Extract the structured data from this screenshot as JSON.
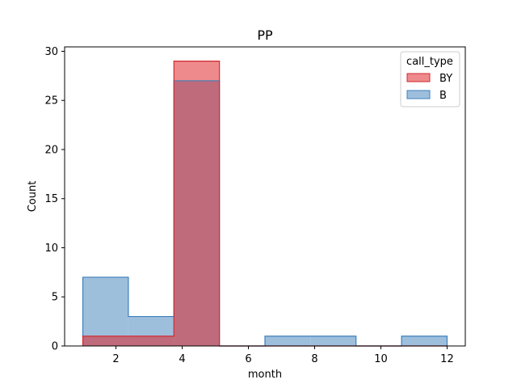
{
  "chart_data": {
    "type": "histogram",
    "title": "PP",
    "xlabel": "month",
    "ylabel": "Count",
    "xlim": [
      0.45,
      12.55
    ],
    "ylim": [
      0,
      30.45
    ],
    "xticks": [
      2,
      4,
      6,
      8,
      10,
      12
    ],
    "yticks": [
      0,
      5,
      10,
      15,
      20,
      25,
      30
    ],
    "bin_edges": [
      1.0,
      2.375,
      3.75,
      5.125,
      6.5,
      7.875,
      9.25,
      10.625,
      12.0
    ],
    "legend": {
      "title": "call_type",
      "placement": "top-right"
    },
    "series": [
      {
        "name": "B",
        "fill": "#9ebfdc",
        "stroke": "#3c7fbc",
        "values": [
          7,
          3,
          27,
          0,
          1,
          1,
          0,
          1
        ]
      },
      {
        "name": "BY",
        "fill": "#ee8a8c",
        "stroke": "#d02b31",
        "values": [
          1,
          1,
          29,
          0,
          0,
          0,
          0,
          0
        ]
      }
    ],
    "overlap_fill": "#bf6b7b",
    "grid": false
  }
}
